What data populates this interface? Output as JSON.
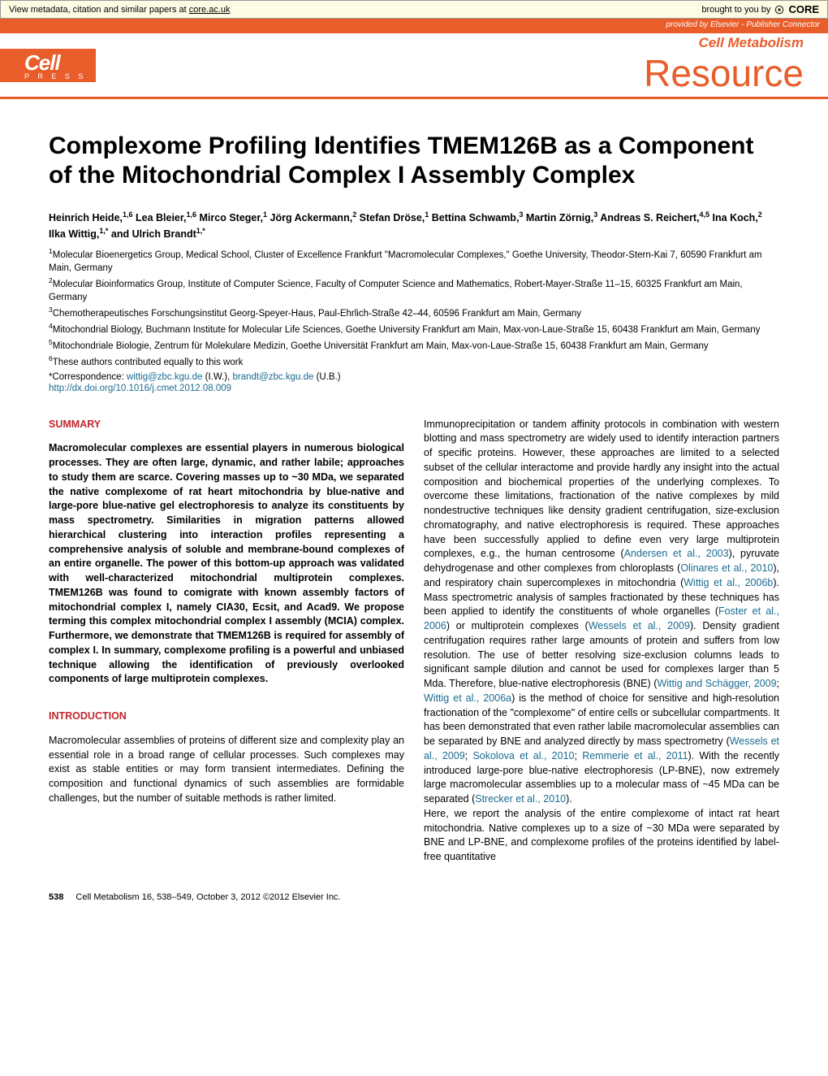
{
  "core_banner": {
    "left_text": "View metadata, citation and similar papers at ",
    "left_link": "core.ac.uk",
    "right_prefix": "brought to you by ",
    "core_label": "CORE"
  },
  "provided_bar": {
    "prefix": "provided by ",
    "publisher": "Elsevier - Publisher Connector"
  },
  "header": {
    "journal": "Cell Metabolism",
    "section": "Resource",
    "press_cell": "Cell",
    "press_label": "P R E S S"
  },
  "title": "Complexome Profiling Identifies TMEM126B as a Component of the Mitochondrial Complex I Assembly Complex",
  "authors_html": "Heinrich Heide,<sup>1,6</sup> Lea Bleier,<sup>1,6</sup> Mirco Steger,<sup>1</sup> Jörg Ackermann,<sup>2</sup> Stefan Dröse,<sup>1</sup> Bettina Schwamb,<sup>3</sup> Martin Zörnig,<sup>3</sup> Andreas S. Reichert,<sup>4,5</sup> Ina Koch,<sup>2</sup> Ilka Wittig,<sup>1,*</sup> and Ulrich Brandt<sup>1,*</sup>",
  "affiliations": [
    "<sup>1</sup>Molecular Bioenergetics Group, Medical School, Cluster of Excellence Frankfurt \"Macromolecular Complexes,\" Goethe University, Theodor-Stern-Kai 7, 60590 Frankfurt am Main, Germany",
    "<sup>2</sup>Molecular Bioinformatics Group, Institute of Computer Science, Faculty of Computer Science and Mathematics, Robert-Mayer-Straße 11–15, 60325 Frankfurt am Main, Germany",
    "<sup>3</sup>Chemotherapeutisches Forschungsinstitut Georg-Speyer-Haus, Paul-Ehrlich-Straße 42–44, 60596 Frankfurt am Main, Germany",
    "<sup>4</sup>Mitochondrial Biology, Buchmann Institute for Molecular Life Sciences, Goethe University Frankfurt am Main, Max-von-Laue-Straße 15, 60438 Frankfurt am Main, Germany",
    "<sup>5</sup>Mitochondriale Biologie, Zentrum für Molekulare Medizin, Goethe Universität Frankfurt am Main, Max-von-Laue-Straße 15, 60438 Frankfurt am Main, Germany",
    "<sup>6</sup>These authors contributed equally to this work"
  ],
  "correspondence": {
    "prefix": "*Correspondence: ",
    "email1": "wittig@zbc.kgu.de",
    "paren1": " (I.W.), ",
    "email2": "brandt@zbc.kgu.de",
    "paren2": " (U.B.)"
  },
  "doi": "http://dx.doi.org/10.1016/j.cmet.2012.08.009",
  "sections": {
    "summary_head": "SUMMARY",
    "summary_text": "Macromolecular complexes are essential players in numerous biological processes. They are often large, dynamic, and rather labile; approaches to study them are scarce. Covering masses up to ~30 MDa, we separated the native complexome of rat heart mitochondria by blue-native and large-pore blue-native gel electrophoresis to analyze its constituents by mass spectrometry. Similarities in migration patterns allowed hierarchical clustering into interaction profiles representing a comprehensive analysis of soluble and membrane-bound complexes of an entire organelle. The power of this bottom-up approach was validated with well-characterized mitochondrial multiprotein complexes. TMEM126B was found to comigrate with known assembly factors of mitochondrial complex I, namely CIA30, Ecsit, and Acad9. We propose terming this complex mitochondrial complex I assembly (MCIA) complex. Furthermore, we demonstrate that TMEM126B is required for assembly of complex I. In summary, complexome profiling is a powerful and unbiased technique allowing the identification of previously overlooked components of large multiprotein complexes.",
    "intro_head": "INTRODUCTION",
    "intro_para1": "Macromolecular assemblies of proteins of different size and complexity play an essential role in a broad range of cellular processes. Such complexes may exist as stable entities or may form transient intermediates. Defining the composition and functional dynamics of such assemblies are formidable challenges, but the number of suitable methods is rather limited.",
    "right_col_html": "Immunoprecipitation or tandem affinity protocols in combination with western blotting and mass spectrometry are widely used to identify interaction partners of specific proteins. However, these approaches are limited to a selected subset of the cellular interactome and provide hardly any insight into the actual composition and biochemical properties of the underlying complexes. To overcome these limitations, fractionation of the native complexes by mild nondestructive techniques like density gradient centrifugation, size-exclusion chromatography, and native electrophoresis is required. These approaches have been successfully applied to define even very large multiprotein complexes, e.g., the human centrosome (<span class=\"citation-link\">Andersen et al., 2003</span>), pyruvate dehydrogenase and other complexes from chloroplasts (<span class=\"citation-link\">Olinares et al., 2010</span>), and respiratory chain supercomplexes in mitochondria (<span class=\"citation-link\">Wittig et al., 2006b</span>). Mass spectrometric analysis of samples fractionated by these techniques has been applied to identify the constituents of whole organelles (<span class=\"citation-link\">Foster et al., 2006</span>) or multiprotein complexes (<span class=\"citation-link\">Wessels et al., 2009</span>). Density gradient centrifugation requires rather large amounts of protein and suffers from low resolution. The use of better resolving size-exclusion columns leads to significant sample dilution and cannot be used for complexes larger than 5 Mda. Therefore, blue-native electrophoresis (BNE) (<span class=\"citation-link\">Wittig and Schägger, 2009</span>; <span class=\"citation-link\">Wittig et al., 2006a</span>) is the method of choice for sensitive and high-resolution fractionation of the \"complexome\" of entire cells or subcellular compartments. It has been demonstrated that even rather labile macromolecular assemblies can be separated by BNE and analyzed directly by mass spectrometry (<span class=\"citation-link\">Wessels et al., 2009</span>; <span class=\"citation-link\">Sokolova et al., 2010</span>; <span class=\"citation-link\">Remmerie et al., 2011</span>). With the recently introduced large-pore blue-native electrophoresis (LP-BNE), now extremely large macromolecular assemblies up to a molecular mass of ~45 MDa can be separated (<span class=\"citation-link\">Strecker et al., 2010</span>).",
    "right_col_para2": "Here, we report the analysis of the entire complexome of intact rat heart mitochondria. Native complexes up to a size of ~30 MDa were separated by BNE and LP-BNE, and complexome profiles of the proteins identified by label-free quantitative"
  },
  "footer": {
    "page": "538",
    "citation": "Cell Metabolism 16, 538–549, October 3, 2012 ©2012 Elsevier Inc."
  },
  "colors": {
    "accent": "#e85d2a",
    "section_head": "#c1272d",
    "link": "#1a6b8f",
    "banner_bg": "#fcfbe3"
  }
}
